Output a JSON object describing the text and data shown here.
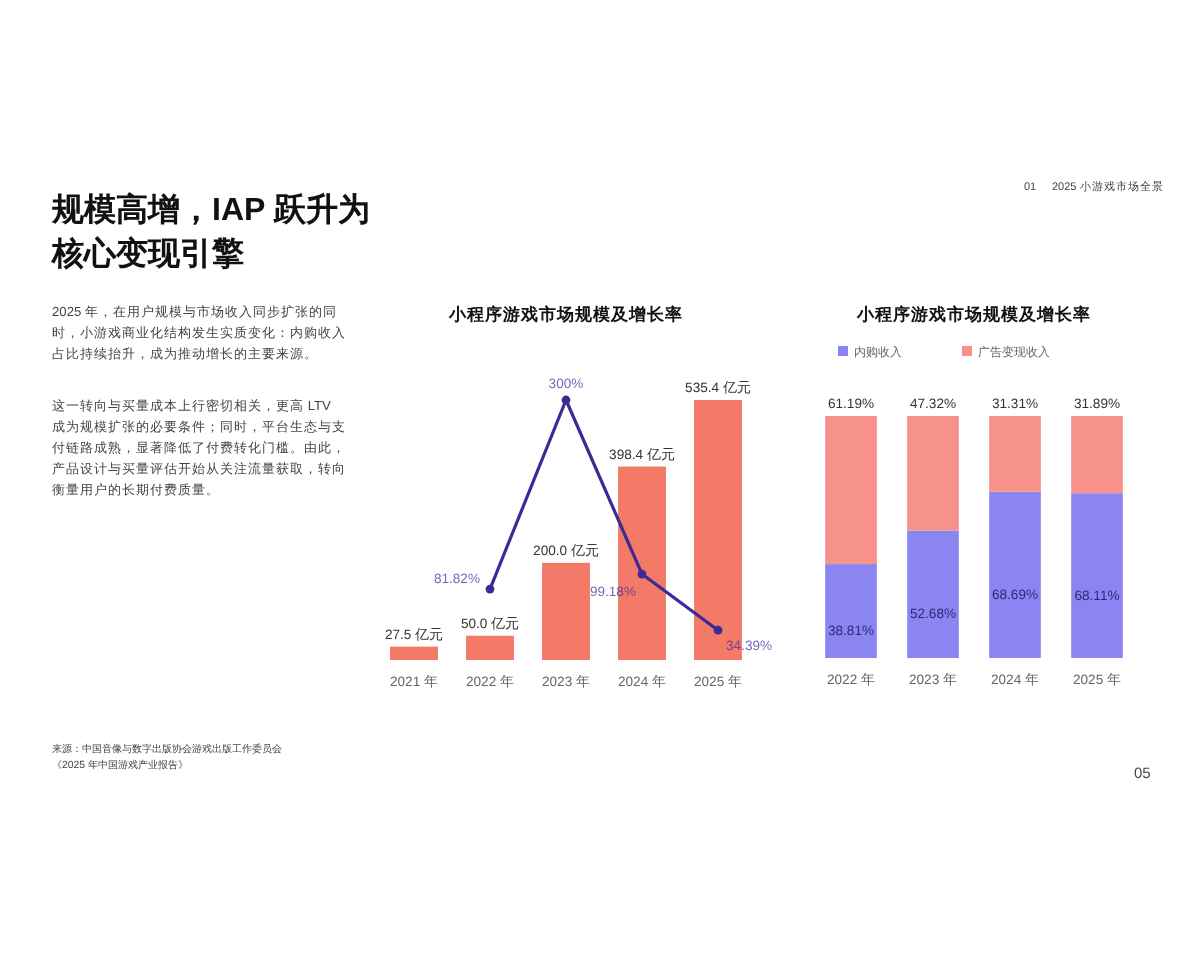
{
  "chart_data": [
    {
      "type": "other",
      "title": "规模高增，IAP 跃升为核心变现引擎",
      "annotations": [
        "2025 年，在用户规模与市场收入同步扩张的同时，小游戏商业化结构发生实质变化：内购收入占比持续抬升，成为推动增长的主要来源。",
        "这一转向与买量成本上行密切相关，更高 LTV 成为规模扩张的必要条件；同时，平台生态与支付链路成熟，显著降低了付费转化门槛。由此，产品设计与买量评估开始从关注流量获取，转向衡量用户的长期付费质量。",
        "01",
        "2025 小游戏市场全景",
        "来源：中国音像与数字出版协会游戏出版工作委员会",
        "《2025 年中国游戏产业报告》",
        "05"
      ]
    },
    {
      "type": "bar",
      "title": "小程序游戏市场规模及增长率",
      "categories": [
        "2021 年",
        "2022 年",
        "2023 年",
        "2024 年",
        "2025 年"
      ],
      "tick_labels": "x",
      "legend": false,
      "series": [
        {
          "type": "bar",
          "color": "#f47a68",
          "values": [
            27.5,
            50.0,
            200.0,
            398.4,
            535.4
          ],
          "value_labels": [
            "27.5 亿元",
            "50.0 亿元",
            "200.0 亿元",
            "398.4 亿元",
            "535.4 亿元"
          ]
        },
        {
          "type": "line",
          "axis": "y2",
          "color": "#3b2a97",
          "marker": "circle",
          "values": [
            null,
            81.82,
            300,
            99.18,
            34.39
          ],
          "value_labels": [
            null,
            "81.82%",
            "300%",
            "99.18%",
            "34.39%"
          ]
        }
      ]
    },
    {
      "type": "bar",
      "stacked": true,
      "title": "小程序游戏市场规模及增长率",
      "categories": [
        "2022 年",
        "2023 年",
        "2024 年",
        "2025 年"
      ],
      "tick_labels": "x",
      "legend": "top",
      "series": [
        {
          "name": "内购收入",
          "color": "#8b85f2",
          "values": [
            38.81,
            52.68,
            68.69,
            68.11
          ],
          "value_labels": [
            "38.81%",
            "52.68%",
            "68.69%",
            "68.11%"
          ]
        },
        {
          "name": "广告变现收入",
          "color": "#f7928b",
          "values": [
            61.19,
            47.32,
            31.31,
            31.89
          ],
          "value_labels": [
            "61.19%",
            "47.32%",
            "31.31%",
            "31.89%"
          ]
        }
      ]
    }
  ]
}
